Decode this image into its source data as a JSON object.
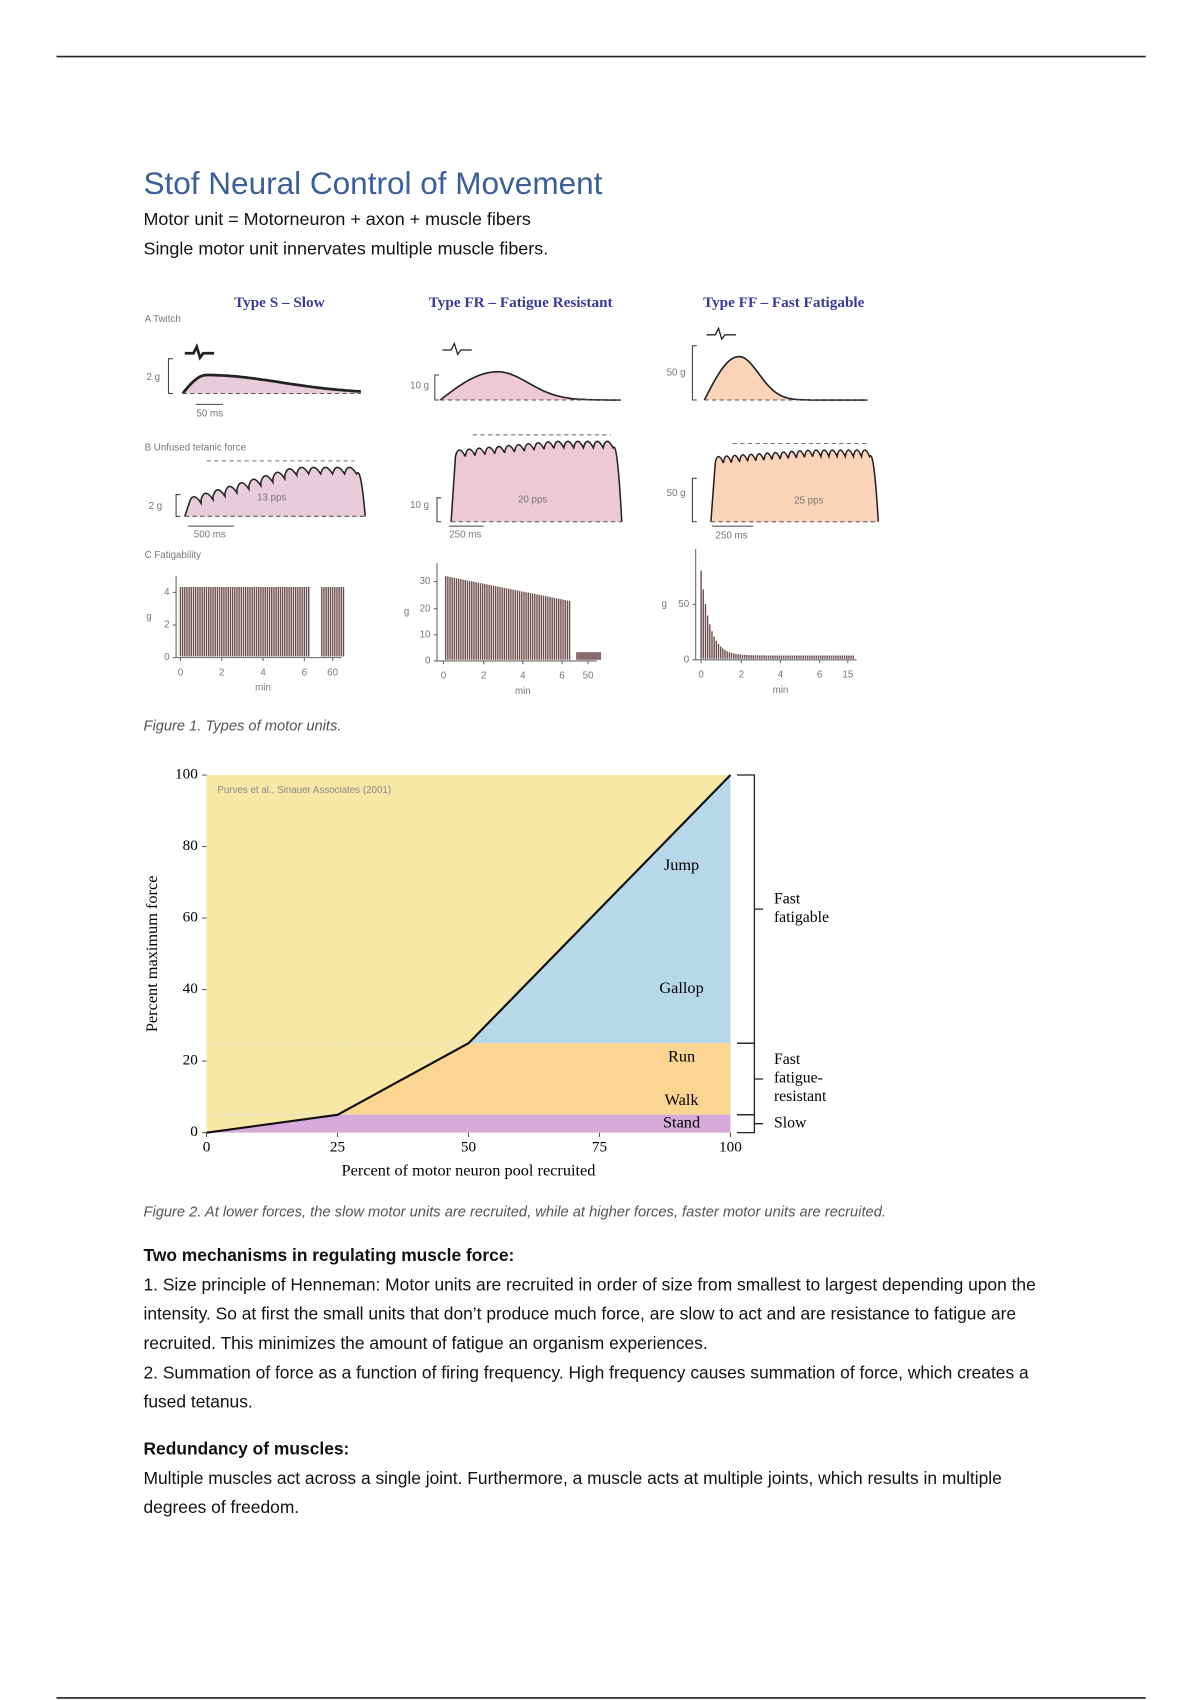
{
  "header": {
    "title": "Stof Neural Control of Movement"
  },
  "intro": [
    "Motor unit = Motorneuron + axon + muscle fibers",
    "Single motor unit innervates multiple muscle fibers."
  ],
  "figure1": {
    "panels": [
      "A  Twitch",
      "B  Unfused tetanic force",
      "C  Fatigability"
    ],
    "columns": [
      {
        "title": "Type S – Slow",
        "twitch_scale": "2 g",
        "twitch_time": "50 ms",
        "tetanic_scale": "2 g",
        "rate": "13 pps",
        "tetanic_time": "500 ms",
        "y_unit": "g",
        "yticks": [
          "0",
          "2",
          "4"
        ],
        "xticks": [
          "0",
          "2",
          "4",
          "6",
          "60"
        ],
        "x_unit": "min"
      },
      {
        "title": "Type FR – Fatigue Resistant",
        "twitch_scale": "10 g",
        "tetanic_scale": "10 g",
        "rate": "20 pps",
        "tetanic_time": "250 ms",
        "y_unit": "g",
        "yticks": [
          "0",
          "10",
          "20",
          "30"
        ],
        "xticks": [
          "0",
          "2",
          "4",
          "6",
          "50"
        ],
        "x_unit": "min"
      },
      {
        "title": "Type FF – Fast Fatigable",
        "twitch_scale": "50 g",
        "tetanic_scale": "50 g",
        "rate": "25 pps",
        "tetanic_time": "250 ms",
        "y_unit": "g",
        "yticks": [
          "0",
          "50"
        ],
        "xticks": [
          "0",
          "2",
          "4",
          "6",
          "15"
        ],
        "x_unit": "min"
      }
    ],
    "caption": "Figure 1. Types of motor units."
  },
  "figure2": {
    "type": "line",
    "attribution": "Purves et al., Sinauer Associates (2001)",
    "ylabel": "Percent maximum force",
    "xlabel": "Percent of motor neuron pool recruited",
    "xlim": [
      0,
      100
    ],
    "ylim": [
      0,
      100
    ],
    "xticks": [
      0,
      25,
      50,
      75,
      100
    ],
    "yticks": [
      0,
      20,
      40,
      60,
      80,
      100
    ],
    "background": "#f7e8a6",
    "curve": {
      "x": [
        0,
        25,
        50,
        100
      ],
      "y": [
        0,
        5,
        25,
        100
      ]
    },
    "activities": [
      "Jump",
      "Gallop",
      "Run",
      "Walk",
      "Stand"
    ],
    "brackets": [
      {
        "lines": [
          "Fast",
          "fatigable"
        ],
        "range": [
          25,
          100
        ],
        "color": "#b7d8e9"
      },
      {
        "lines": [
          "Fast",
          "fatigue-",
          "resistant"
        ],
        "range": [
          5,
          25
        ],
        "color": "#fcd592"
      },
      {
        "lines": [
          "Slow"
        ],
        "range": [
          0,
          5
        ],
        "color": "#d6abd9"
      }
    ],
    "caption": "Figure 2. At lower forces, the slow motor units are recruited, while at higher forces, faster motor units are recruited."
  },
  "mechanisms": {
    "heading": "Two mechanisms in regulating muscle force:",
    "items": [
      "1. Size principle of Henneman: Motor units are recruited in order of size from smallest to largest depending upon the intensity. So at first the small units that don’t produce much force, are slow to act and are resistance to fatigue are recruited. This minimizes the amount of fatigue an organism experiences.",
      "2. Summation of force as a function of firing frequency. High frequency causes summation of force, which creates a fused tetanus."
    ]
  },
  "redundancy": {
    "heading": "Redundancy of muscles:",
    "text": "Multiple muscles act across a single joint. Furthermore, a muscle acts at multiple joints, which results in multiple degrees of freedom."
  }
}
